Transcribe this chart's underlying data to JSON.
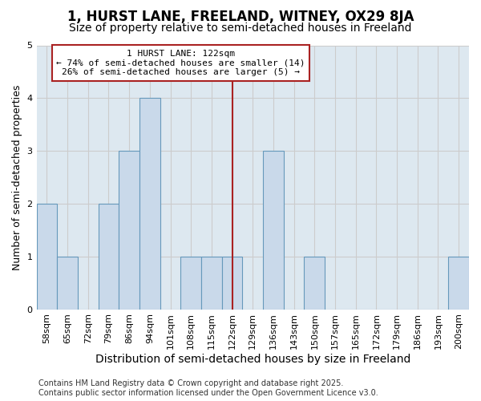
{
  "title": "1, HURST LANE, FREELAND, WITNEY, OX29 8JA",
  "subtitle": "Size of property relative to semi-detached houses in Freeland",
  "xlabel": "Distribution of semi-detached houses by size in Freeland",
  "ylabel": "Number of semi-detached properties",
  "categories": [
    "58sqm",
    "65sqm",
    "72sqm",
    "79sqm",
    "86sqm",
    "94sqm",
    "101sqm",
    "108sqm",
    "115sqm",
    "122sqm",
    "129sqm",
    "136sqm",
    "143sqm",
    "150sqm",
    "157sqm",
    "165sqm",
    "172sqm",
    "179sqm",
    "186sqm",
    "193sqm",
    "200sqm"
  ],
  "values": [
    2,
    1,
    0,
    2,
    3,
    4,
    0,
    1,
    1,
    1,
    0,
    3,
    0,
    1,
    0,
    0,
    0,
    0,
    0,
    0,
    1
  ],
  "bar_color": "#c9d9ea",
  "bar_edge_color": "#6699bb",
  "highlight_index": 9,
  "vline_color": "#aa2222",
  "annotation_line1": "1 HURST LANE: 122sqm",
  "annotation_line2": "← 74% of semi-detached houses are smaller (14)",
  "annotation_line3": "26% of semi-detached houses are larger (5) →",
  "annotation_box_color": "white",
  "annotation_box_edge_color": "#aa2222",
  "ylim": [
    0,
    5
  ],
  "yticks": [
    0,
    1,
    2,
    3,
    4,
    5
  ],
  "grid_color": "#cccccc",
  "plot_bg_color": "#dde8f0",
  "figure_bg_color": "#ffffff",
  "footer_line1": "Contains HM Land Registry data © Crown copyright and database right 2025.",
  "footer_line2": "Contains public sector information licensed under the Open Government Licence v3.0.",
  "title_fontsize": 12,
  "subtitle_fontsize": 10,
  "xlabel_fontsize": 10,
  "ylabel_fontsize": 9,
  "tick_fontsize": 8,
  "annotation_fontsize": 8,
  "footer_fontsize": 7
}
